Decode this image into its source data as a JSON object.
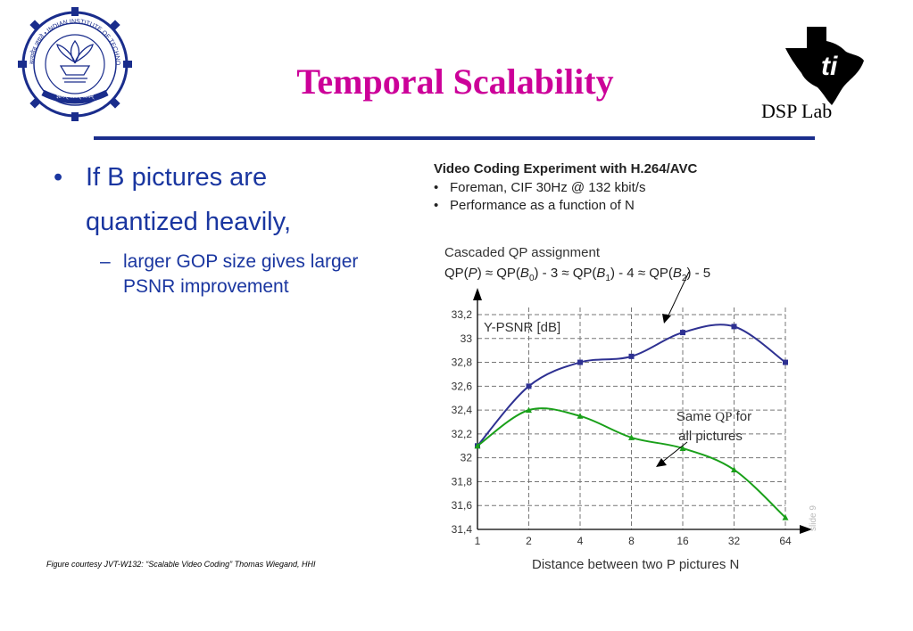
{
  "slide": {
    "title": "Temporal Scalability",
    "dsp_label": "DSP Lab",
    "bullet": "If B pictures are quantized heavily,",
    "sub_bullet": "larger GOP size gives larger PSNR improvement",
    "caption": "Figure courtesy JVT-W132: “Scalable Video Coding” Thomas Wiegand, HHI",
    "slide_number": "slide 9",
    "title_color": "#cc0099",
    "text_color": "#1a36a0",
    "rule_color": "#1a2d8c"
  },
  "logos": {
    "left_text": "सत्यमेव जयते • INDIAN INSTITUTE OF TECHNOLOGY BOMBAY",
    "left_motto": "ज्ञानम् परमम् ध्येयम्",
    "right_icon": "ti-texas-logo"
  },
  "figure": {
    "heading": "Video Coding Experiment with H.264/AVC",
    "notes": [
      "Foreman, CIF 30Hz @ 132 kbit/s",
      "Performance as a function of N"
    ],
    "subheading": "Cascaded QP assignment",
    "formula": "QP(P) ≈ QP(B0) - 3 ≈ QP(B1) - 4 ≈ QP(B2) - 5"
  },
  "chart_data": {
    "type": "line",
    "title": "Video Coding Experiment with H.264/AVC",
    "xlabel": "Distance between two P pictures N",
    "ylabel": "Y-PSNR [dB]",
    "x": [
      1,
      2,
      4,
      8,
      16,
      32,
      64
    ],
    "x_tick_labels": [
      "1",
      "2",
      "4",
      "8",
      "16",
      "32",
      "64"
    ],
    "y_tick_labels": [
      "31,4",
      "31,6",
      "31,8",
      "32",
      "32,2",
      "32,4",
      "32,6",
      "32,8",
      "33",
      "33,2"
    ],
    "ylim": [
      31.4,
      33.2
    ],
    "grid": true,
    "series": [
      {
        "values": [
          32.1,
          32.6,
          32.8,
          32.85,
          33.05,
          33.1,
          32.8
        ],
        "color": "#2e3192"
      },
      {
        "values": [
          32.1,
          32.4,
          32.35,
          32.17,
          32.08,
          31.9,
          31.5
        ],
        "color": "#1aa01a"
      }
    ],
    "annotations": [
      "Same QP for all pictures"
    ]
  }
}
